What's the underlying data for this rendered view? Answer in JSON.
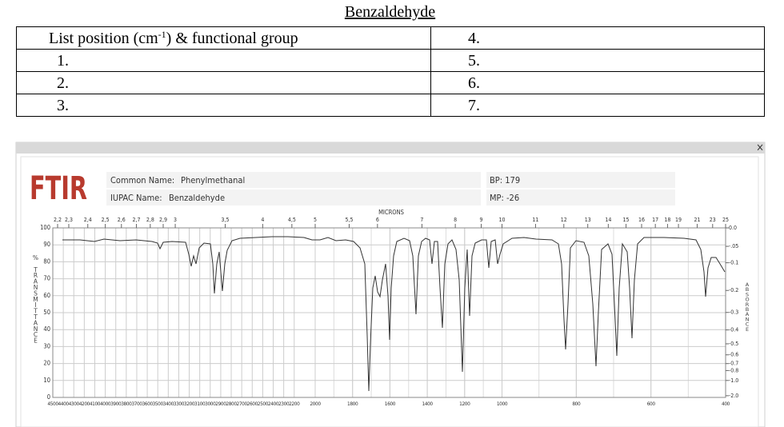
{
  "title": "Benzaldehyde",
  "table": {
    "header": [
      "List position (cm",
      "-1",
      ") & functional group"
    ],
    "header_right": "4.",
    "rows": [
      [
        "1.",
        "5."
      ],
      [
        "2.",
        "6."
      ],
      [
        "3.",
        "7."
      ]
    ]
  },
  "spectrum": {
    "close": "×",
    "logo": "FTIR",
    "common_name_label": "Common Name:",
    "common_name": "Phenylmethanal",
    "iupac_label": "IUPAC Name:",
    "iupac_name": "Benzaldehyde",
    "bp": "BP: 179",
    "mp": "MP: -26",
    "microns_label": "MICRONS",
    "y_label": "% TRANSMITTANCE",
    "y2_label": "ABSORBANCE",
    "yticks": [
      0,
      10,
      20,
      30,
      40,
      50,
      60,
      70,
      80,
      90,
      100
    ],
    "y2ticks": [
      "0.0",
      "-.05",
      "-0.1",
      "-0.2",
      "-0.3",
      "-0.4",
      "-0.5",
      "-0.6",
      "-0.7",
      "-0.8",
      "-1.0",
      "-2.0"
    ],
    "microns": [
      "2,2",
      "2,3",
      "2,4",
      "2,5",
      "2,6",
      "2,7",
      "2,8",
      "2,9",
      "3",
      "3,5",
      "4",
      "4,5",
      "5",
      "5,5",
      "6",
      "7",
      "8",
      "9",
      "10",
      "11",
      "12",
      "13",
      "14",
      "15",
      "16",
      "17",
      "18",
      "19",
      "21",
      "23",
      "25"
    ],
    "wavenumbers": [
      4500,
      4400,
      4300,
      4200,
      4100,
      4000,
      3900,
      3800,
      3700,
      3600,
      3500,
      3400,
      3300,
      3200,
      3100,
      3000,
      2900,
      2800,
      2700,
      2600,
      2500,
      2400,
      2300,
      2200,
      2000,
      1800,
      1600,
      1400,
      1200,
      1000,
      800,
      600,
      400
    ]
  }
}
